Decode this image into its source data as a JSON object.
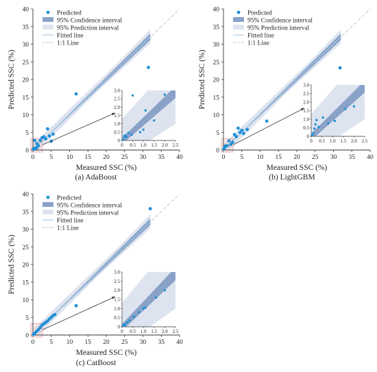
{
  "chart_data": [
    {
      "type": "scatter",
      "caption": "(a) AdaBoost",
      "xlabel": "Measured SSC (%)",
      "ylabel": "Predicted SSC (%)",
      "xlim": [
        0,
        40
      ],
      "ylim": [
        0,
        40
      ],
      "xticks": [
        "0",
        "5",
        "10",
        "15",
        "20",
        "25",
        "30",
        "35",
        "40"
      ],
      "yticks": [
        "0",
        "5",
        "10",
        "15",
        "20",
        "25",
        "30",
        "35",
        "40"
      ],
      "legend": [
        "Predicted",
        "95% Confidence interval",
        "95% Prediction interval",
        "Fitted line",
        "1:1 Line"
      ],
      "legend_position": "top-left",
      "points": [
        {
          "x": 0.1,
          "y": 0.3
        },
        {
          "x": 0.2,
          "y": 0.4
        },
        {
          "x": 0.3,
          "y": 0.2
        },
        {
          "x": 0.4,
          "y": 0.5
        },
        {
          "x": 0.5,
          "y": 2.7
        },
        {
          "x": 0.8,
          "y": 0.5
        },
        {
          "x": 1.0,
          "y": 0.7
        },
        {
          "x": 1.1,
          "y": 1.8
        },
        {
          "x": 1.5,
          "y": 1.2
        },
        {
          "x": 2.0,
          "y": 2.7
        },
        {
          "x": 2.5,
          "y": 3.5
        },
        {
          "x": 3.0,
          "y": 3.7
        },
        {
          "x": 3.5,
          "y": 3.2
        },
        {
          "x": 4.0,
          "y": 6.0
        },
        {
          "x": 4.5,
          "y": 4.0
        },
        {
          "x": 5.0,
          "y": 2.5
        },
        {
          "x": 5.5,
          "y": 4.5
        },
        {
          "x": 11.8,
          "y": 15.9
        },
        {
          "x": 31.5,
          "y": 23.4
        }
      ],
      "inset": {
        "xlim": [
          0,
          2.5
        ],
        "ylim": [
          0,
          3.0
        ],
        "xticks": [
          "0",
          "0.5",
          "1.0",
          "1.5",
          "2.0",
          "2.5"
        ],
        "yticks": [
          "0",
          "0.5",
          "1.0",
          "1.5",
          "2.0",
          "2.5",
          "3.0"
        ],
        "points": [
          {
            "x": 0.05,
            "y": 0.05
          },
          {
            "x": 0.1,
            "y": 0.25
          },
          {
            "x": 0.15,
            "y": 0.3
          },
          {
            "x": 0.2,
            "y": 0.2
          },
          {
            "x": 0.3,
            "y": 0.45
          },
          {
            "x": 0.45,
            "y": 0.35
          },
          {
            "x": 0.5,
            "y": 2.7
          },
          {
            "x": 0.85,
            "y": 0.5
          },
          {
            "x": 1.0,
            "y": 0.65
          },
          {
            "x": 1.1,
            "y": 1.8
          },
          {
            "x": 1.5,
            "y": 1.2
          },
          {
            "x": 2.0,
            "y": 2.75
          }
        ]
      }
    },
    {
      "type": "scatter",
      "caption": "(b) LightGBM",
      "xlabel": "Measured SSC (%)",
      "ylabel": "Predicted SSC (%)",
      "xlim": [
        0,
        40
      ],
      "ylim": [
        0,
        40
      ],
      "xticks": [
        "0",
        "5",
        "10",
        "15",
        "20",
        "25",
        "30",
        "35",
        "40"
      ],
      "yticks": [
        "0",
        "5",
        "10",
        "15",
        "20",
        "25",
        "30",
        "35",
        "40"
      ],
      "legend": [
        "Predicted",
        "95% Confidence interval",
        "95% Prediction interval",
        "Fitted line",
        "1:1 Line"
      ],
      "legend_position": "top-left",
      "points": [
        {
          "x": 0.1,
          "y": 0.3
        },
        {
          "x": 0.3,
          "y": 0.6
        },
        {
          "x": 0.5,
          "y": 1.1
        },
        {
          "x": 1.0,
          "y": 1.2
        },
        {
          "x": 1.5,
          "y": 2.6
        },
        {
          "x": 2.0,
          "y": 1.6
        },
        {
          "x": 2.5,
          "y": 2.2
        },
        {
          "x": 3.0,
          "y": 4.4
        },
        {
          "x": 3.5,
          "y": 3.8
        },
        {
          "x": 4.0,
          "y": 6.2
        },
        {
          "x": 4.5,
          "y": 5.0
        },
        {
          "x": 5.0,
          "y": 5.6
        },
        {
          "x": 5.5,
          "y": 4.7
        },
        {
          "x": 6.5,
          "y": 5.8
        },
        {
          "x": 11.8,
          "y": 8.2
        },
        {
          "x": 31.8,
          "y": 23.3
        }
      ],
      "inset": {
        "xlim": [
          0,
          2.5
        ],
        "ylim": [
          0,
          3.0
        ],
        "xticks": [
          "0",
          "0.5",
          "1.0",
          "1.5",
          "2.0",
          "2.5"
        ],
        "yticks": [
          "0",
          "0.5",
          "1.0",
          "1.5",
          "2.0",
          "2.5",
          "3.0"
        ],
        "points": [
          {
            "x": 0.05,
            "y": 0.05
          },
          {
            "x": 0.1,
            "y": 0.2
          },
          {
            "x": 0.15,
            "y": 0.45
          },
          {
            "x": 0.2,
            "y": 0.7
          },
          {
            "x": 0.25,
            "y": 0.95
          },
          {
            "x": 0.35,
            "y": 0.55
          },
          {
            "x": 0.55,
            "y": 1.1
          },
          {
            "x": 0.8,
            "y": 0.75
          },
          {
            "x": 1.1,
            "y": 0.9
          },
          {
            "x": 1.6,
            "y": 1.6
          },
          {
            "x": 2.0,
            "y": 1.75
          }
        ]
      }
    },
    {
      "type": "scatter",
      "caption": "(c) CatBoost",
      "xlabel": "Measured SSC (%)",
      "ylabel": "Predicted SSC (%)",
      "xlim": [
        0,
        40
      ],
      "ylim": [
        0,
        40
      ],
      "xticks": [
        "0",
        "5",
        "10",
        "15",
        "20",
        "25",
        "30",
        "35",
        "40"
      ],
      "yticks": [
        "0",
        "5",
        "10",
        "15",
        "20",
        "25",
        "30",
        "35",
        "40"
      ],
      "legend": [
        "Predicted",
        "95% Confidence interval",
        "95% Prediction interval",
        "Fitted line",
        "1:1 Line"
      ],
      "legend_position": "top-left",
      "points": [
        {
          "x": 0.2,
          "y": 0.2
        },
        {
          "x": 0.5,
          "y": 0.5
        },
        {
          "x": 1.0,
          "y": 1.0
        },
        {
          "x": 1.5,
          "y": 1.5
        },
        {
          "x": 2.0,
          "y": 2.1
        },
        {
          "x": 2.5,
          "y": 2.8
        },
        {
          "x": 3.0,
          "y": 3.2
        },
        {
          "x": 3.5,
          "y": 3.6
        },
        {
          "x": 4.0,
          "y": 4.0
        },
        {
          "x": 4.5,
          "y": 4.5
        },
        {
          "x": 5.0,
          "y": 5.0
        },
        {
          "x": 5.5,
          "y": 5.5
        },
        {
          "x": 6.0,
          "y": 5.8
        },
        {
          "x": 11.8,
          "y": 8.3
        },
        {
          "x": 32.0,
          "y": 35.8
        }
      ],
      "inset": {
        "xlim": [
          0,
          2.5
        ],
        "ylim": [
          0,
          3.0
        ],
        "xticks": [
          "0",
          "0.5",
          "1.0",
          "1.5",
          "2.0",
          "2.5"
        ],
        "yticks": [
          "0",
          "0.5",
          "1.0",
          "1.5",
          "2.0",
          "2.5",
          "3.0"
        ],
        "points": [
          {
            "x": 0.05,
            "y": 0.05
          },
          {
            "x": 0.1,
            "y": 0.1
          },
          {
            "x": 0.15,
            "y": 0.15
          },
          {
            "x": 0.25,
            "y": 0.25
          },
          {
            "x": 0.35,
            "y": 0.35
          },
          {
            "x": 0.55,
            "y": 0.55
          },
          {
            "x": 0.8,
            "y": 0.8
          },
          {
            "x": 1.0,
            "y": 1.0
          },
          {
            "x": 1.1,
            "y": 1.05
          },
          {
            "x": 1.6,
            "y": 1.6
          },
          {
            "x": 2.0,
            "y": 2.0
          }
        ]
      }
    }
  ],
  "colors": {
    "point": "#1f8fd6",
    "confidence": "#8aa2c8",
    "prediction": "#dde4ef",
    "fitted": "#9ec7e6",
    "one_to_one": "#b9c7d8",
    "zoom_box": "#e8a0a0",
    "arrow": "#333333"
  }
}
